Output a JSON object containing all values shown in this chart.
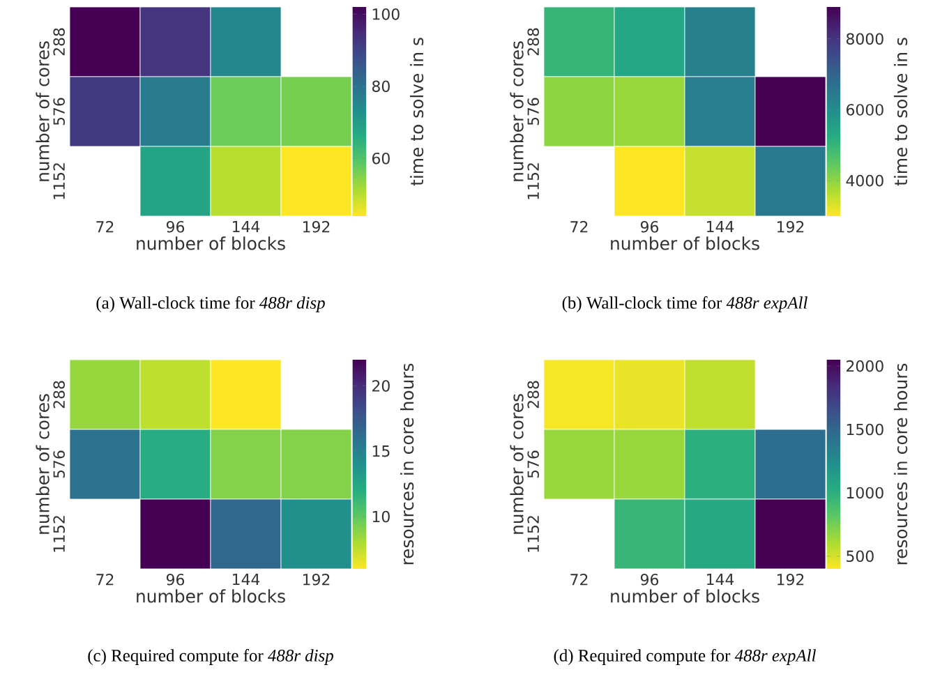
{
  "chart_data": [
    {
      "type": "heatmap",
      "title": "(a) Wall-clock time for *488r disp*",
      "xlabel": "number of blocks",
      "ylabel": "number of cores",
      "clabel": "time to solve in s",
      "categories": [
        "72",
        "96",
        "144",
        "192"
      ],
      "y_categories": [
        "288",
        "576",
        "1152"
      ],
      "cells": [
        [
          102,
          93,
          75,
          null
        ],
        [
          92,
          78,
          57,
          56
        ],
        [
          null,
          68,
          50,
          44
        ]
      ],
      "clim": [
        44,
        102
      ],
      "cticks": [
        60,
        80,
        100
      ]
    },
    {
      "type": "heatmap",
      "title": "(b) Wall-clock time for *488r expAll*",
      "xlabel": "number of blocks",
      "ylabel": "number of cores",
      "clabel": "time to solve in s",
      "categories": [
        "72",
        "96",
        "144",
        "192"
      ],
      "y_categories": [
        "288",
        "576",
        "1152"
      ],
      "cells": [
        [
          5000,
          5400,
          6300,
          null
        ],
        [
          4000,
          3900,
          6400,
          8900
        ],
        [
          null,
          3000,
          3500,
          6500
        ]
      ],
      "clim": [
        3000,
        8900
      ],
      "cticks": [
        4000,
        6000,
        8000
      ]
    },
    {
      "type": "heatmap",
      "title": "(c) Required compute for *488r disp*",
      "xlabel": "number of blocks",
      "ylabel": "number of cores",
      "clabel": "resources in core hours",
      "categories": [
        "72",
        "96",
        "144",
        "192"
      ],
      "y_categories": [
        "288",
        "576",
        "1152"
      ],
      "cells": [
        [
          8.5,
          7.5,
          6,
          null
        ],
        [
          16,
          12,
          9,
          9
        ],
        [
          null,
          22,
          16.5,
          14
        ]
      ],
      "clim": [
        6,
        22
      ],
      "cticks": [
        10,
        15,
        20
      ]
    },
    {
      "type": "heatmap",
      "title": "(d) Required compute for *488r expAll*",
      "xlabel": "number of blocks",
      "ylabel": "number of cores",
      "clabel": "resources in core hours",
      "categories": [
        "72",
        "96",
        "144",
        "192"
      ],
      "y_categories": [
        "288",
        "576",
        "1152"
      ],
      "cells": [
        [
          420,
          450,
          550,
          null
        ],
        [
          650,
          650,
          1000,
          1450
        ],
        [
          null,
          950,
          1050,
          2050
        ]
      ],
      "clim": [
        400,
        2050
      ],
      "cticks": [
        500,
        1000,
        1500,
        2000
      ]
    }
  ]
}
